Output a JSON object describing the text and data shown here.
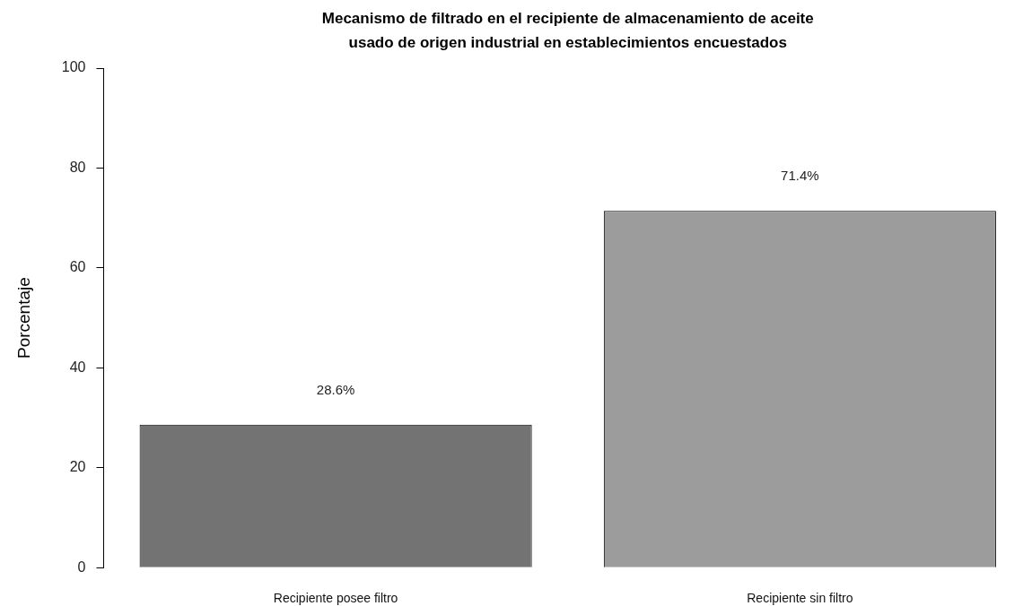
{
  "chart_data": {
    "type": "bar",
    "title": "Mecanismo de filtrado en el recipiente de almacenamiento de aceite\nusado de origen industrial en establecimientos encuestados",
    "ylabel": "Porcentaje",
    "categories": [
      "Recipiente posee filtro",
      "Recipiente sin filtro"
    ],
    "values": [
      28.6,
      71.4
    ],
    "colors": [
      "#737373",
      "#9c9c9c"
    ],
    "value_labels": [
      "28.6%",
      "71.4%"
    ],
    "ylim": [
      0,
      100
    ],
    "yticks": [
      0,
      20,
      40,
      60,
      80,
      100
    ],
    "grid": false,
    "legend": false
  }
}
